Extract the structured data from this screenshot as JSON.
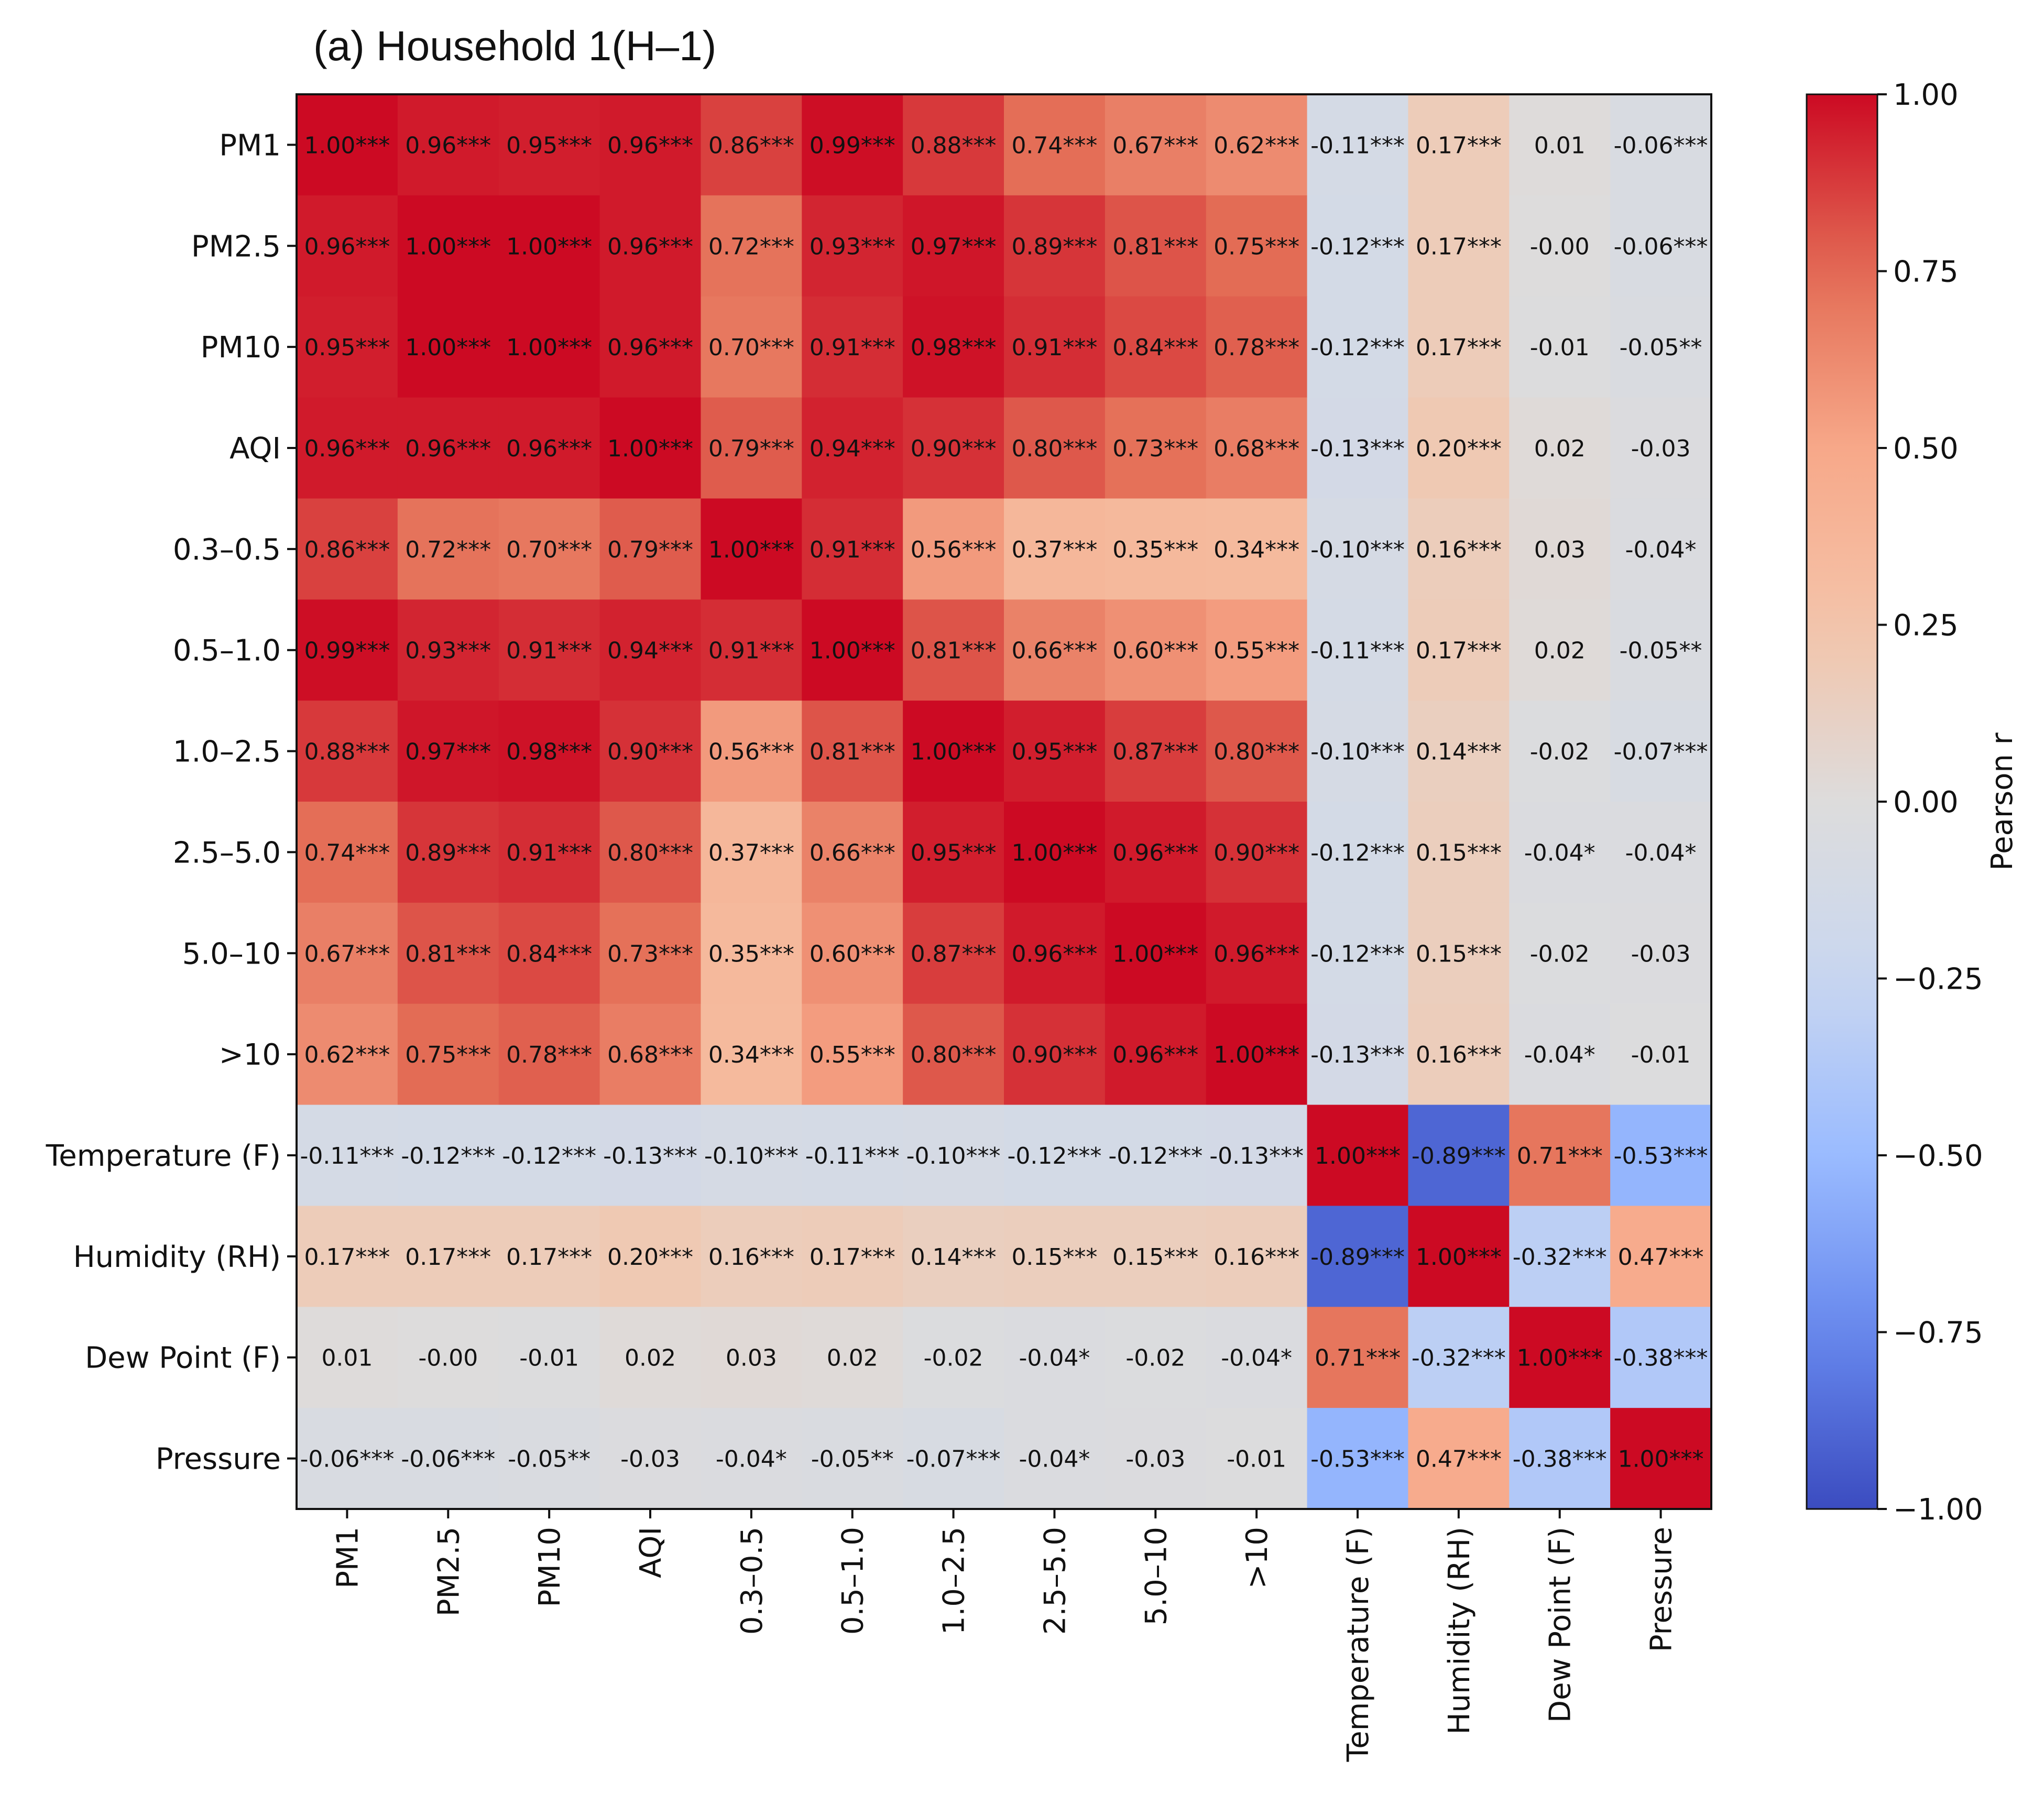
{
  "chart_data": {
    "type": "heatmap",
    "title": "(a) Household 1(H–1)",
    "row_labels": [
      "PM1",
      "PM2.5",
      "PM10",
      "AQI",
      "0.3–0.5",
      "0.5–1.0",
      "1.0–2.5",
      "2.5–5.0",
      "5.0–10",
      ">10",
      "Temperature (F)",
      "Humidity (RH)",
      "Dew Point (F)",
      "Pressure"
    ],
    "col_labels": [
      "PM1",
      "PM2.5",
      "PM10",
      "AQI",
      "0.3–0.5",
      "0.5–1.0",
      "1.0–2.5",
      "2.5–5.0",
      "5.0–10",
      ">10",
      "Temperature (F)",
      "Humidity (RH)",
      "Dew Point (F)",
      "Pressure"
    ],
    "values": [
      [
        1.0,
        0.96,
        0.95,
        0.96,
        0.86,
        0.99,
        0.88,
        0.74,
        0.67,
        0.62,
        -0.11,
        0.17,
        0.01,
        -0.06
      ],
      [
        0.96,
        1.0,
        1.0,
        0.96,
        0.72,
        0.93,
        0.97,
        0.89,
        0.81,
        0.75,
        -0.12,
        0.17,
        -0.0,
        -0.06
      ],
      [
        0.95,
        1.0,
        1.0,
        0.96,
        0.7,
        0.91,
        0.98,
        0.91,
        0.84,
        0.78,
        -0.12,
        0.17,
        -0.01,
        -0.05
      ],
      [
        0.96,
        0.96,
        0.96,
        1.0,
        0.79,
        0.94,
        0.9,
        0.8,
        0.73,
        0.68,
        -0.13,
        0.2,
        0.02,
        -0.03
      ],
      [
        0.86,
        0.72,
        0.7,
        0.79,
        1.0,
        0.91,
        0.56,
        0.37,
        0.35,
        0.34,
        -0.1,
        0.16,
        0.03,
        -0.04
      ],
      [
        0.99,
        0.93,
        0.91,
        0.94,
        0.91,
        1.0,
        0.81,
        0.66,
        0.6,
        0.55,
        -0.11,
        0.17,
        0.02,
        -0.05
      ],
      [
        0.88,
        0.97,
        0.98,
        0.9,
        0.56,
        0.81,
        1.0,
        0.95,
        0.87,
        0.8,
        -0.1,
        0.14,
        -0.02,
        -0.07
      ],
      [
        0.74,
        0.89,
        0.91,
        0.8,
        0.37,
        0.66,
        0.95,
        1.0,
        0.96,
        0.9,
        -0.12,
        0.15,
        -0.04,
        -0.04
      ],
      [
        0.67,
        0.81,
        0.84,
        0.73,
        0.35,
        0.6,
        0.87,
        0.96,
        1.0,
        0.96,
        -0.12,
        0.15,
        -0.02,
        -0.03
      ],
      [
        0.62,
        0.75,
        0.78,
        0.68,
        0.34,
        0.55,
        0.8,
        0.9,
        0.96,
        1.0,
        -0.13,
        0.16,
        -0.04,
        -0.01
      ],
      [
        -0.11,
        -0.12,
        -0.12,
        -0.13,
        -0.1,
        -0.11,
        -0.1,
        -0.12,
        -0.12,
        -0.13,
        1.0,
        -0.89,
        0.71,
        -0.53
      ],
      [
        0.17,
        0.17,
        0.17,
        0.2,
        0.16,
        0.17,
        0.14,
        0.15,
        0.15,
        0.16,
        -0.89,
        1.0,
        -0.32,
        0.47
      ],
      [
        0.01,
        -0.0,
        -0.01,
        0.02,
        0.03,
        0.02,
        -0.02,
        -0.04,
        -0.02,
        -0.04,
        0.71,
        -0.32,
        1.0,
        -0.38
      ],
      [
        -0.06,
        -0.06,
        -0.05,
        -0.03,
        -0.04,
        -0.05,
        -0.07,
        -0.04,
        -0.03,
        -0.01,
        -0.53,
        0.47,
        -0.38,
        1.0
      ]
    ],
    "annotations": [
      [
        "1.00***",
        "0.96***",
        "0.95***",
        "0.96***",
        "0.86***",
        "0.99***",
        "0.88***",
        "0.74***",
        "0.67***",
        "0.62***",
        "-0.11***",
        "0.17***",
        "0.01",
        "-0.06***"
      ],
      [
        "0.96***",
        "1.00***",
        "1.00***",
        "0.96***",
        "0.72***",
        "0.93***",
        "0.97***",
        "0.89***",
        "0.81***",
        "0.75***",
        "-0.12***",
        "0.17***",
        "-0.00",
        "-0.06***"
      ],
      [
        "0.95***",
        "1.00***",
        "1.00***",
        "0.96***",
        "0.70***",
        "0.91***",
        "0.98***",
        "0.91***",
        "0.84***",
        "0.78***",
        "-0.12***",
        "0.17***",
        "-0.01",
        "-0.05**"
      ],
      [
        "0.96***",
        "0.96***",
        "0.96***",
        "1.00***",
        "0.79***",
        "0.94***",
        "0.90***",
        "0.80***",
        "0.73***",
        "0.68***",
        "-0.13***",
        "0.20***",
        "0.02",
        "-0.03"
      ],
      [
        "0.86***",
        "0.72***",
        "0.70***",
        "0.79***",
        "1.00***",
        "0.91***",
        "0.56***",
        "0.37***",
        "0.35***",
        "0.34***",
        "-0.10***",
        "0.16***",
        "0.03",
        "-0.04*"
      ],
      [
        "0.99***",
        "0.93***",
        "0.91***",
        "0.94***",
        "0.91***",
        "1.00***",
        "0.81***",
        "0.66***",
        "0.60***",
        "0.55***",
        "-0.11***",
        "0.17***",
        "0.02",
        "-0.05**"
      ],
      [
        "0.88***",
        "0.97***",
        "0.98***",
        "0.90***",
        "0.56***",
        "0.81***",
        "1.00***",
        "0.95***",
        "0.87***",
        "0.80***",
        "-0.10***",
        "0.14***",
        "-0.02",
        "-0.07***"
      ],
      [
        "0.74***",
        "0.89***",
        "0.91***",
        "0.80***",
        "0.37***",
        "0.66***",
        "0.95***",
        "1.00***",
        "0.96***",
        "0.90***",
        "-0.12***",
        "0.15***",
        "-0.04*",
        "-0.04*"
      ],
      [
        "0.67***",
        "0.81***",
        "0.84***",
        "0.73***",
        "0.35***",
        "0.60***",
        "0.87***",
        "0.96***",
        "1.00***",
        "0.96***",
        "-0.12***",
        "0.15***",
        "-0.02",
        "-0.03"
      ],
      [
        "0.62***",
        "0.75***",
        "0.78***",
        "0.68***",
        "0.34***",
        "0.55***",
        "0.80***",
        "0.90***",
        "0.96***",
        "1.00***",
        "-0.13***",
        "0.16***",
        "-0.04*",
        "-0.01"
      ],
      [
        "-0.11***",
        "-0.12***",
        "-0.12***",
        "-0.13***",
        "-0.10***",
        "-0.11***",
        "-0.10***",
        "-0.12***",
        "-0.12***",
        "-0.13***",
        "1.00***",
        "-0.89***",
        "0.71***",
        "-0.53***"
      ],
      [
        "0.17***",
        "0.17***",
        "0.17***",
        "0.20***",
        "0.16***",
        "0.17***",
        "0.14***",
        "0.15***",
        "0.15***",
        "0.16***",
        "-0.89***",
        "1.00***",
        "-0.32***",
        "0.47***"
      ],
      [
        "0.01",
        "-0.00",
        "-0.01",
        "0.02",
        "0.03",
        "0.02",
        "-0.02",
        "-0.04*",
        "-0.02",
        "-0.04*",
        "0.71***",
        "-0.32***",
        "1.00***",
        "-0.38***"
      ],
      [
        "-0.06***",
        "-0.06***",
        "-0.05**",
        "-0.03",
        "-0.04*",
        "-0.05**",
        "-0.07***",
        "-0.04*",
        "-0.03",
        "-0.01",
        "-0.53***",
        "0.47***",
        "-0.38***",
        "1.00***"
      ]
    ],
    "colorbar": {
      "label": "Pearson r",
      "range": [
        -1.0,
        1.0
      ],
      "ticks": [
        1.0,
        0.75,
        0.5,
        0.25,
        0.0,
        -0.25,
        -0.5,
        -0.75,
        -1.0
      ],
      "tick_labels": [
        "1.00",
        "0.75",
        "0.50",
        "0.25",
        "0.00",
        "−0.25",
        "−0.50",
        "−0.75",
        "−1.00"
      ]
    },
    "colormap": {
      "name": "coolwarm",
      "stops": [
        {
          "v": -1.0,
          "color": "#3b4cc0"
        },
        {
          "v": -0.75,
          "color": "#6788ee"
        },
        {
          "v": -0.5,
          "color": "#9abbff"
        },
        {
          "v": -0.25,
          "color": "#c9d7f0"
        },
        {
          "v": 0.0,
          "color": "#dddcdc"
        },
        {
          "v": 0.25,
          "color": "#f4c4a9"
        },
        {
          "v": 0.5,
          "color": "#f7a889"
        },
        {
          "v": 0.75,
          "color": "#e36c55"
        },
        {
          "v": 1.0,
          "color": "#cc0a23"
        }
      ]
    }
  }
}
